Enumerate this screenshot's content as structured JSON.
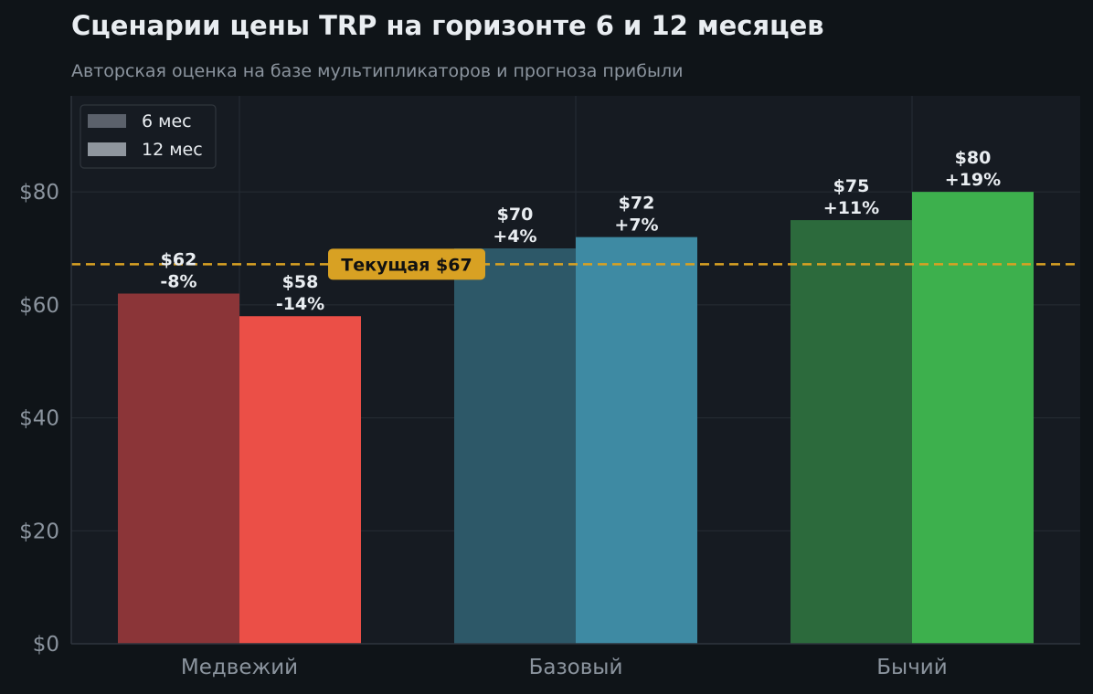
{
  "chart_data": {
    "type": "bar",
    "title": "Сценарии цены TRP на горизонте 6 и 12 месяцев",
    "subtitle": "Авторская оценка на базе мультипликаторов и прогноза прибыли",
    "categories": [
      "Медвежий",
      "Базовый",
      "Бычий"
    ],
    "series": [
      {
        "name": "6 мес",
        "values": [
          62,
          70,
          75
        ],
        "value_labels": [
          "$62",
          "$70",
          "$75"
        ],
        "change_labels": [
          "-8%",
          "+4%",
          "+11%"
        ],
        "colors": [
          "#8b3538",
          "#2d5868",
          "#2c6a3c"
        ],
        "legend_color": "#5b616b"
      },
      {
        "name": "12 мес",
        "values": [
          58,
          72,
          80
        ],
        "value_labels": [
          "$58",
          "$72",
          "$80"
        ],
        "change_labels": [
          "-14%",
          "+7%",
          "+19%"
        ],
        "colors": [
          "#eb4f47",
          "#3e8aa3",
          "#3db04d"
        ],
        "legend_color": "#8f969e"
      }
    ],
    "ylim": [
      0,
      97
    ],
    "yticks": [
      0,
      20,
      40,
      60,
      80
    ],
    "ytick_labels": [
      "$0",
      "$20",
      "$40",
      "$60",
      "$80"
    ],
    "reference_line": {
      "value": 67.2,
      "label": "Текущая $67",
      "color": "#d8a123"
    },
    "legend_position": "top-left",
    "grid": true
  },
  "colors": {
    "page_background": "#0f1418",
    "plot_background": "#161b22",
    "grid": "#262c35",
    "text": "#e9edf1",
    "muted_text": "#8b949e"
  }
}
